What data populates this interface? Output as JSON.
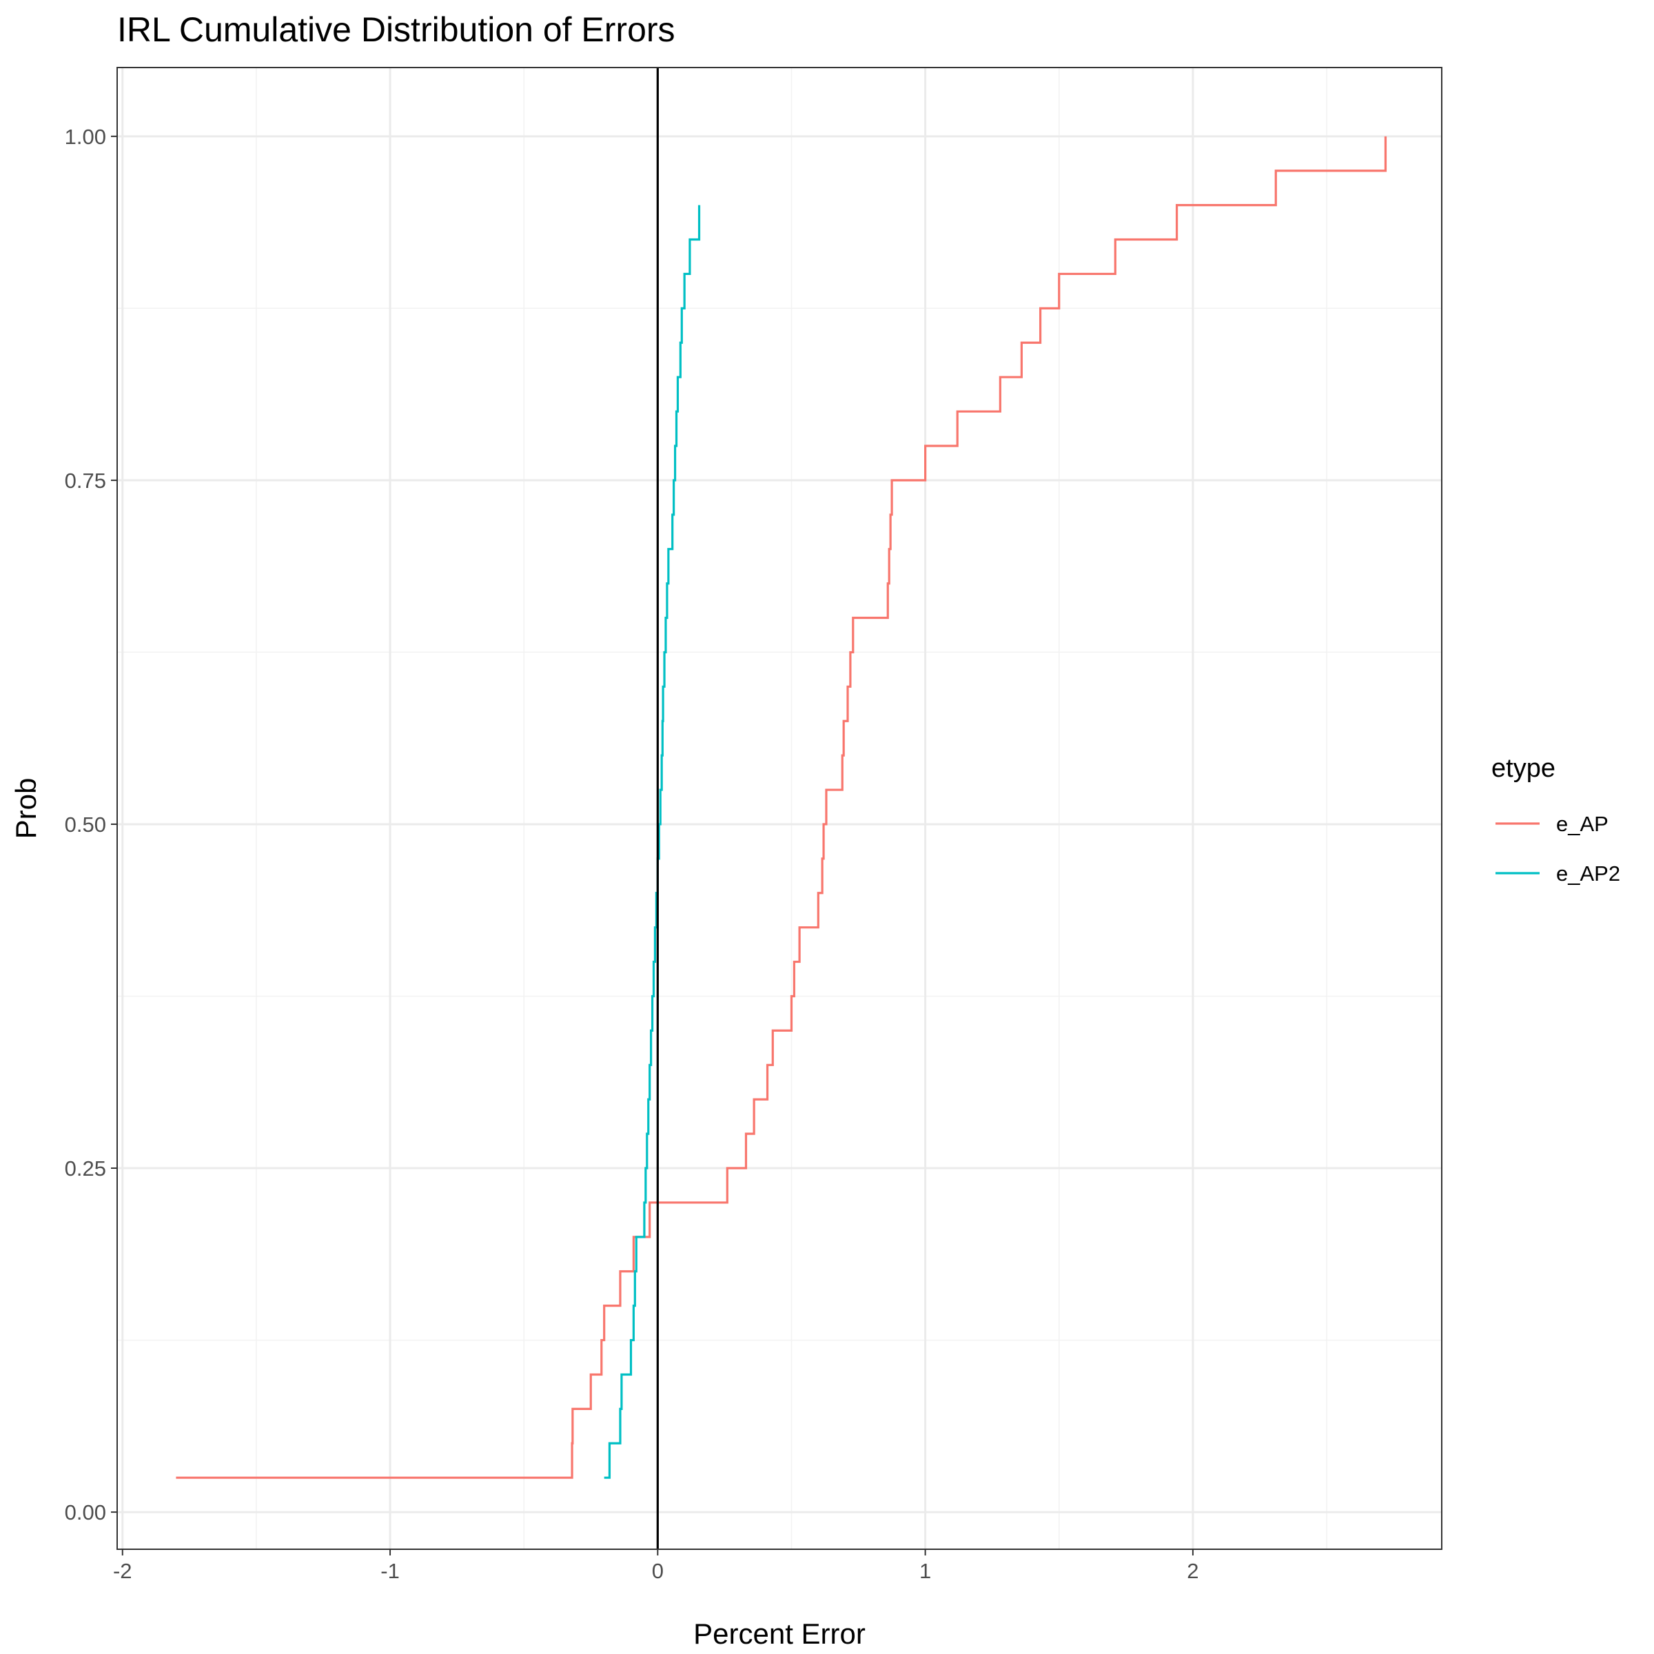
{
  "chart_data": {
    "type": "line",
    "step": true,
    "title": "IRL Cumulative Distribution of Errors",
    "xlabel": "Percent Error",
    "ylabel": "Prob",
    "xlim": [
      -2.02,
      2.93
    ],
    "ylim": [
      -0.027,
      1.05
    ],
    "x_ticks": [
      -2,
      -1,
      0,
      1,
      2
    ],
    "x_tick_labels": [
      "-2",
      "-1",
      "0",
      "1",
      "2"
    ],
    "y_ticks": [
      0,
      0.25,
      0.5,
      0.75,
      1
    ],
    "y_tick_labels": [
      "0.00",
      "0.25",
      "0.50",
      "0.75",
      "1.00"
    ],
    "grid": true,
    "vline_x": 0,
    "vline_color": "#000000",
    "legend": {
      "title": "etype",
      "position": "right"
    },
    "series": [
      {
        "name": "e_AP",
        "color": "#F8766D",
        "x": [
          -1.8,
          -0.32,
          -0.318,
          -0.25,
          -0.21,
          -0.2,
          -0.14,
          -0.09,
          -0.03,
          0.26,
          0.33,
          0.36,
          0.41,
          0.43,
          0.5,
          0.51,
          0.53,
          0.6,
          0.615,
          0.62,
          0.63,
          0.69,
          0.695,
          0.71,
          0.72,
          0.73,
          0.86,
          0.865,
          0.87,
          0.875,
          1.0,
          1.12,
          1.28,
          1.36,
          1.43,
          1.5,
          1.71,
          1.94,
          2.31,
          2.72
        ],
        "y": [
          0.025,
          0.05,
          0.075,
          0.1,
          0.125,
          0.15,
          0.175,
          0.2,
          0.225,
          0.25,
          0.275,
          0.3,
          0.325,
          0.35,
          0.375,
          0.4,
          0.425,
          0.45,
          0.475,
          0.5,
          0.525,
          0.55,
          0.575,
          0.6,
          0.625,
          0.65,
          0.675,
          0.7,
          0.725,
          0.75,
          0.775,
          0.8,
          0.825,
          0.85,
          0.875,
          0.9,
          0.925,
          0.95,
          0.975,
          1.0
        ],
        "x_end": 2.72
      },
      {
        "name": "e_AP2",
        "color": "#00BFC4",
        "x": [
          -0.2,
          -0.18,
          -0.14,
          -0.135,
          -0.1,
          -0.09,
          -0.085,
          -0.08,
          -0.05,
          -0.045,
          -0.04,
          -0.035,
          -0.03,
          -0.025,
          -0.02,
          -0.015,
          -0.01,
          -0.005,
          0.0,
          0.005,
          0.01,
          0.015,
          0.018,
          0.02,
          0.025,
          0.03,
          0.035,
          0.04,
          0.055,
          0.06,
          0.065,
          0.07,
          0.075,
          0.085,
          0.09,
          0.1,
          0.12,
          0.155
        ],
        "y": [
          0.025,
          0.05,
          0.075,
          0.1,
          0.125,
          0.15,
          0.175,
          0.2,
          0.225,
          0.25,
          0.275,
          0.3,
          0.325,
          0.35,
          0.375,
          0.4,
          0.425,
          0.45,
          0.475,
          0.5,
          0.525,
          0.55,
          0.575,
          0.6,
          0.625,
          0.65,
          0.675,
          0.7,
          0.725,
          0.75,
          0.775,
          0.8,
          0.825,
          0.85,
          0.875,
          0.9,
          0.925,
          0.95
        ],
        "x_end": 0.155
      }
    ]
  }
}
